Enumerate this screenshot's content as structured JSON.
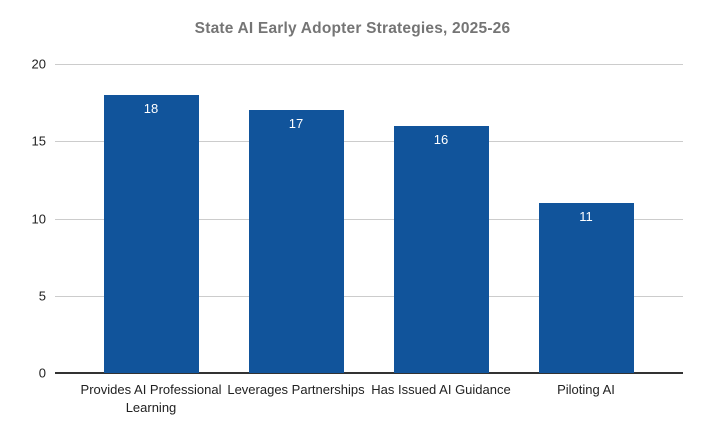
{
  "chart_data": {
    "type": "bar",
    "title": "State AI Early Adopter Strategies, 2025-26",
    "categories": [
      "Provides AI Professional Learning",
      "Leverages Partnerships",
      "Has Issued AI Guidance",
      "Piloting AI"
    ],
    "values": [
      18,
      17,
      16,
      11
    ],
    "xlabel": "",
    "ylabel": "",
    "ylim": [
      0,
      20
    ],
    "yticks": [
      0,
      5,
      10,
      15,
      20
    ],
    "grid": true,
    "legend": "none",
    "colors": {
      "bar": "#11549b",
      "value_label": "#ffffff",
      "title": "#757575",
      "axis_label": "#212121",
      "gridline": "#cccccc",
      "axis_line": "#333333",
      "background": "#ffffff"
    }
  }
}
